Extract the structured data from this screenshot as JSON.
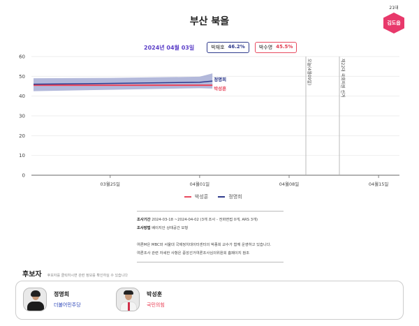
{
  "header": {
    "title": "부산 북을",
    "incumbent_badge": {
      "term": "21대",
      "name": "김도읍",
      "color": "#e8396b"
    },
    "date": "2024년 04월 03일",
    "pills": [
      {
        "name": "박재호",
        "value": "46.2%",
        "color": "#2e3a8c"
      },
      {
        "name": "박수영",
        "value": "45.5%",
        "color": "#e03a4e"
      }
    ]
  },
  "chart_data": {
    "type": "line",
    "title": "부산 북을",
    "xlabel": "",
    "ylabel": "",
    "ylim": [
      0,
      60
    ],
    "yticks": [
      0,
      10,
      20,
      30,
      40,
      50,
      60
    ],
    "grid": true,
    "x_ticks": [
      "03월 25일",
      "04월 01일",
      "04월 08일",
      "04월 15일"
    ],
    "x_range_days": [
      "03-19",
      "04-16"
    ],
    "series": [
      {
        "name": "정명희",
        "color": "#2e3a8c",
        "x": [
          "03-19",
          "03-25",
          "04-01",
          "04-02"
        ],
        "values": [
          46.0,
          46.4,
          47.0,
          47.6
        ],
        "band_upper": [
          49.0,
          49.2,
          49.8,
          51.5
        ],
        "band_lower": [
          42.5,
          43.2,
          44.0,
          43.8
        ]
      },
      {
        "name": "박성훈",
        "color": "#e84a5f",
        "x": [
          "03-19",
          "03-25",
          "04-01",
          "04-02"
        ],
        "values": [
          45.5,
          45.5,
          45.5,
          45.5
        ]
      }
    ],
    "annotations": [
      {
        "x": "04-09",
        "label": "오늘(4월09일)"
      },
      {
        "x": "04-10",
        "label": "제22대 국회의원 선거"
      }
    ],
    "legend": [
      "박성훈",
      "정명희"
    ],
    "legend_position": "bottom"
  },
  "info": {
    "period_label": "조사기간",
    "period_value": "2024-03-18 ~2024-04-02 (3개 조사 - 전화면접 0개, ARS 3개)",
    "method_label": "조사방법",
    "method_value": "베이지안 상태공간 모형",
    "note1": "여론M은 MBC와 서울대 국제정치데이터센터의 박종희 교수가 함께 운영하고 있습니다.",
    "note2": "여론조사 관련 자세한 사항은 중앙선거여론조사심의위원회 홈페이지 참조"
  },
  "candidates": {
    "title": "후보자",
    "hint": "후보자를 클릭하시면 관련 정보를 확인하실 수 있습니다",
    "list": [
      {
        "name": "정명희",
        "party": "더불어민주당",
        "party_color": "#2b45b8"
      },
      {
        "name": "박성훈",
        "party": "국민의힘",
        "party_color": "#e8384f"
      }
    ]
  }
}
